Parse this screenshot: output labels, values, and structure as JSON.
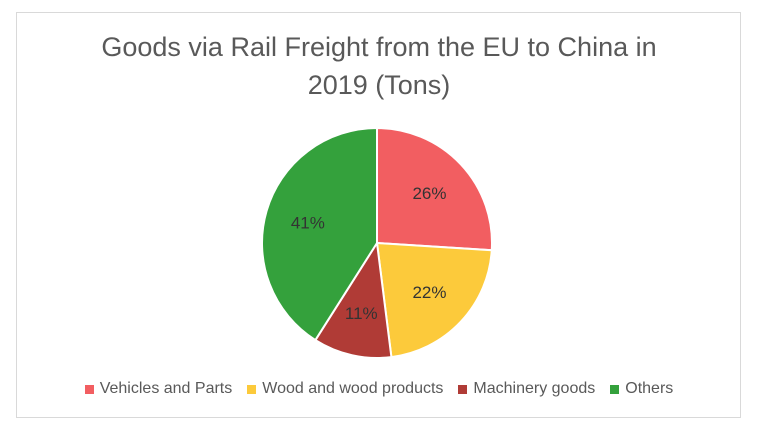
{
  "chart_data": {
    "type": "pie",
    "title": "Goods via Rail Freight from the EU to China in 2019 (Tons)",
    "legend_position": "bottom",
    "slices": [
      {
        "name": "Vehicles and Parts",
        "value": 26,
        "label": "26%",
        "color": "#f25e61"
      },
      {
        "name": "Wood and wood products",
        "value": 22,
        "label": "22%",
        "color": "#fcca3b"
      },
      {
        "name": "Machinery goods",
        "value": 11,
        "label": "11%",
        "color": "#b03b36"
      },
      {
        "name": "Others",
        "value": 41,
        "label": "41%",
        "color": "#34a13c"
      }
    ]
  }
}
